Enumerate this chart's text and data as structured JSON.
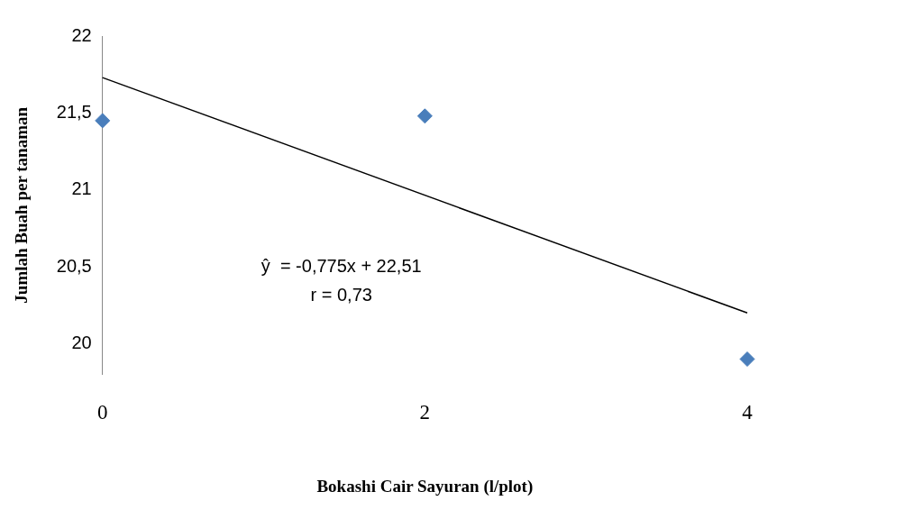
{
  "chart_data": {
    "type": "scatter",
    "xlabel": "Bokashi Cair Sayuran (l/plot)",
    "ylabel": "Jumlah Buah per tanaman",
    "series": [
      {
        "type": "scatter",
        "x": [
          0,
          2,
          4
        ],
        "values": [
          21.45,
          21.48,
          19.9
        ],
        "color": "#4a7ebb",
        "marker": "diamond"
      },
      {
        "type": "line",
        "x": [
          0,
          4
        ],
        "values": [
          21.73,
          20.2
        ],
        "color": "#000000",
        "marker": "none"
      }
    ],
    "xlim": [
      0,
      4
    ],
    "xticks": [
      0,
      2,
      4
    ],
    "ylim": [
      19.8,
      22
    ],
    "yticks": [
      20,
      {
        "value": 20.5,
        "label": "20,5"
      },
      21,
      {
        "value": 21.5,
        "label": "21,5"
      },
      22
    ],
    "annotations": [
      "ŷ  = -0,775x + 22,51",
      "r = 0,73"
    ],
    "grid": false,
    "legend": false
  }
}
